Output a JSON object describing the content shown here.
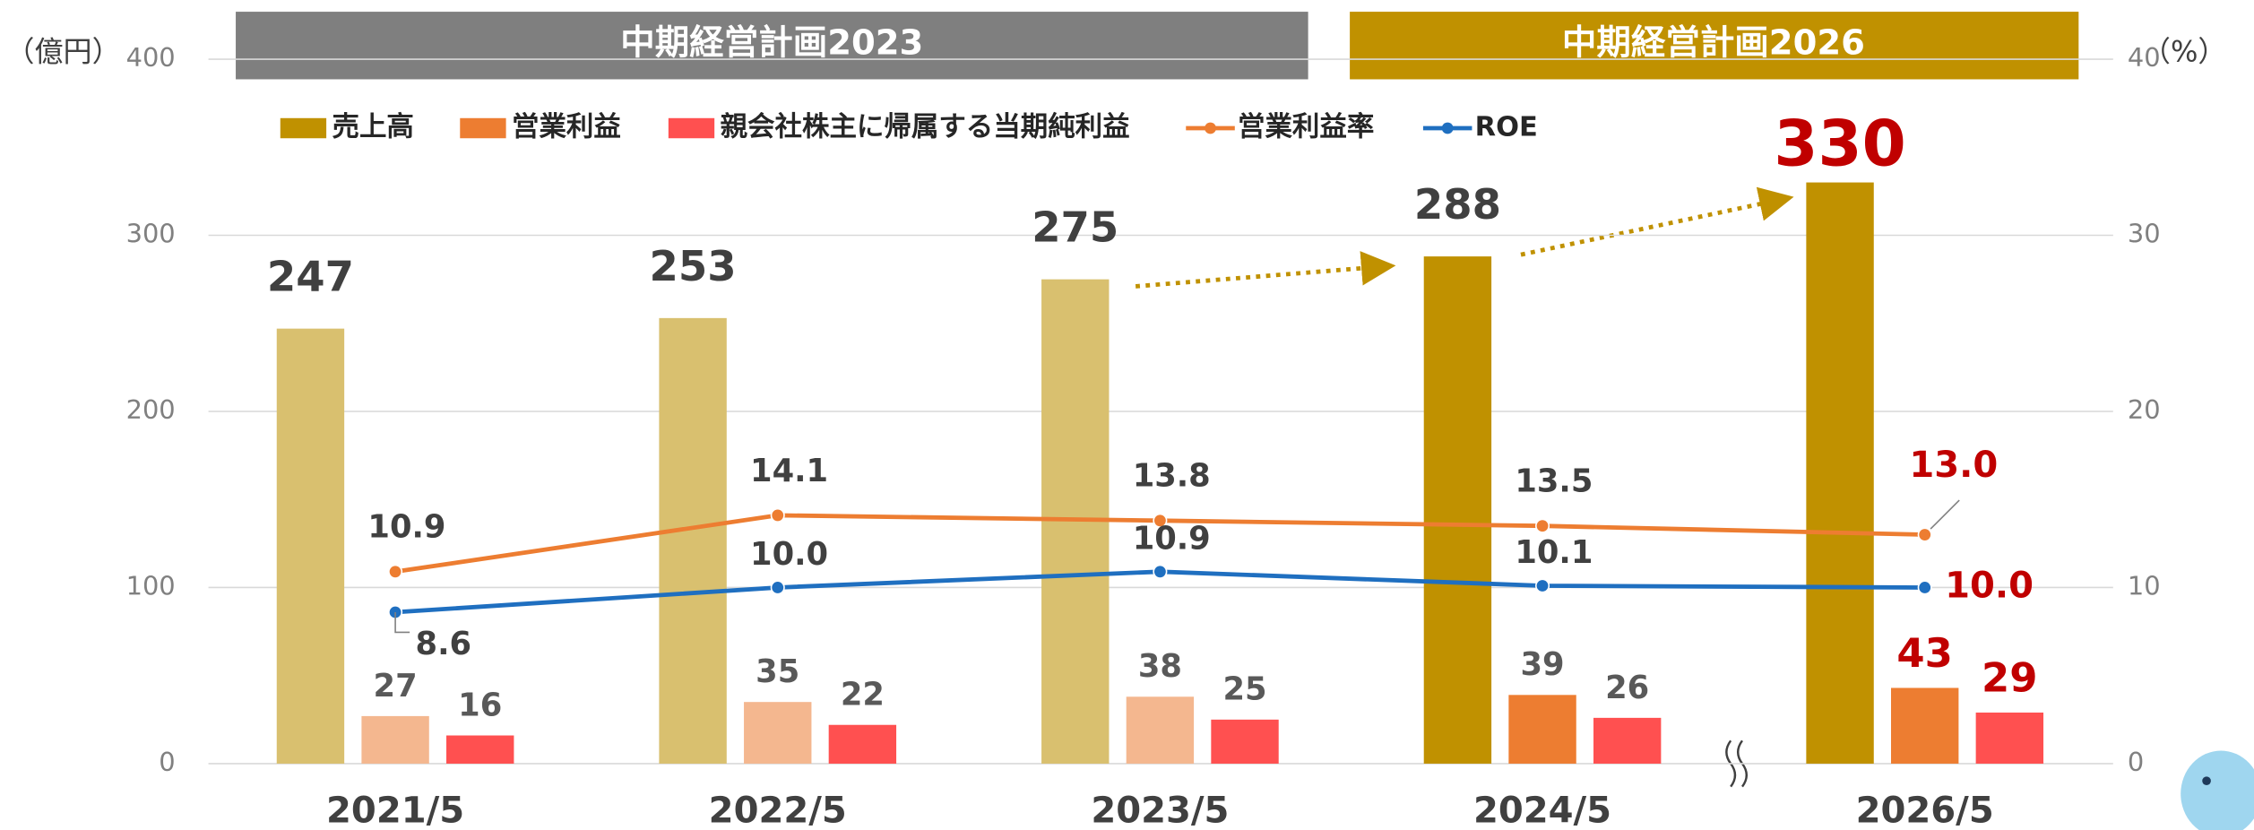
{
  "chart_data": {
    "type": "bar",
    "ylabel": "（億円）",
    "y2label": "（%）",
    "periods": [
      "中期経営計画2023",
      "中期経営計画2026"
    ],
    "categories": [
      "2021/5",
      "2022/5",
      "2023/5",
      "2024/5",
      "2026/5"
    ],
    "ylim": [
      0,
      400
    ],
    "yticks": [
      0,
      100,
      200,
      300,
      400
    ],
    "y2lim": [
      0,
      40
    ],
    "y2ticks": [
      0,
      10,
      20,
      30,
      40
    ],
    "grid": true,
    "highlight": {
      "index": 4,
      "color": "#c00000"
    },
    "series": [
      {
        "name": "売上高",
        "type": "bar",
        "color": "#c09100",
        "colors": [
          "#d9c06f",
          "#d9c06f",
          "#d9c06f",
          "#c09100",
          "#c09100"
        ],
        "values": [
          247,
          253,
          275,
          288,
          330
        ]
      },
      {
        "name": "営業利益",
        "type": "bar",
        "color": "#ed7d31",
        "colors": [
          "#f4b78f",
          "#f4b78f",
          "#f4b78f",
          "#ed7d31",
          "#ed7d31"
        ],
        "values": [
          27,
          35,
          38,
          39,
          43
        ]
      },
      {
        "name": "親会社株主に帰属する当期純利益",
        "type": "bar",
        "color": "#ff5050",
        "colors": [
          "#ff5050",
          "#ff5050",
          "#ff5050",
          "#ff5050",
          "#ff5050"
        ],
        "values": [
          16,
          22,
          25,
          26,
          29
        ]
      },
      {
        "name": "営業利益率",
        "type": "line",
        "axis": "y2",
        "color": "#ed7d31",
        "values": [
          10.9,
          14.1,
          13.8,
          13.5,
          13.0
        ],
        "value_labels": [
          "10.9",
          "14.1",
          "13.8",
          "13.5",
          "13.0"
        ]
      },
      {
        "name": "ROE",
        "type": "line",
        "axis": "y2",
        "color": "#1f6fc0",
        "values": [
          8.6,
          10.0,
          10.9,
          10.1,
          10.0
        ],
        "value_labels": [
          "8.6",
          "10.0",
          "10.9",
          "10.1",
          "10.0"
        ]
      }
    ]
  }
}
